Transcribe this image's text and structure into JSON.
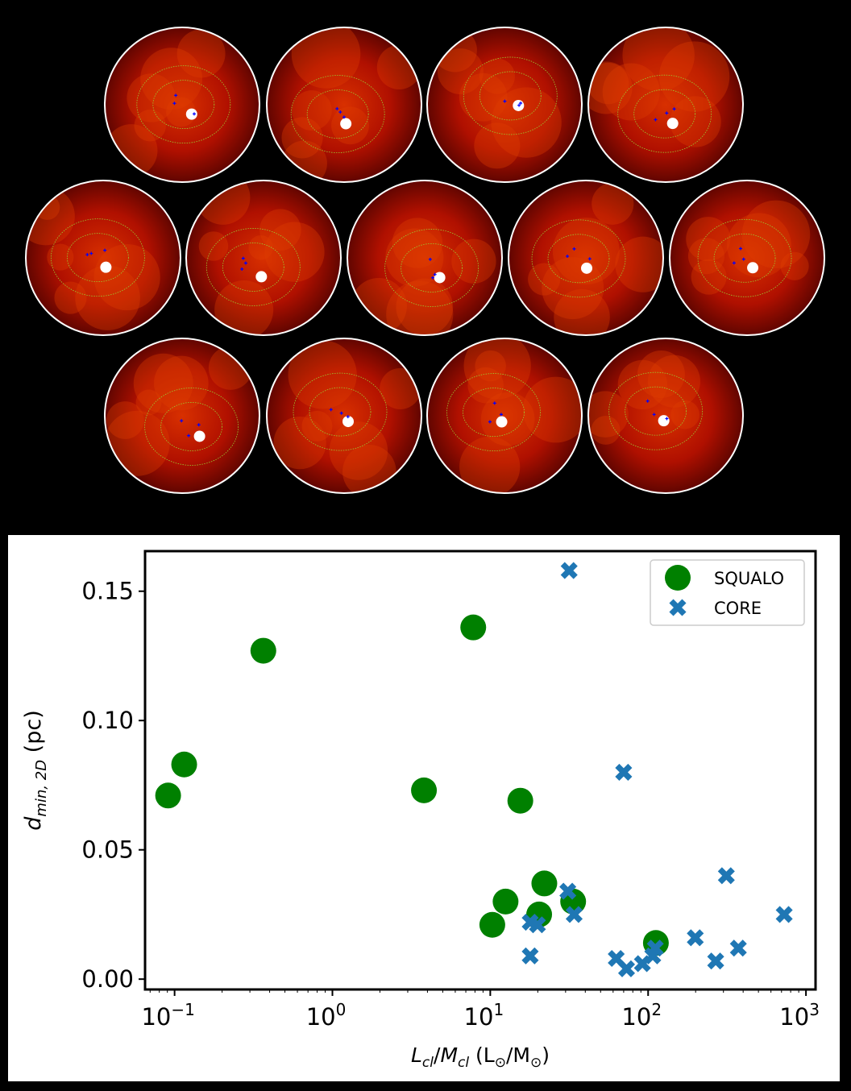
{
  "chart_data": {
    "type": "scatter",
    "title": "",
    "xlabel": "L_cl/M_cl (L_⊙/M_⊙)",
    "xlabel_parts": {
      "L": "L",
      "cl1": "cl",
      "slash": "/",
      "M": "M",
      "cl2": "cl",
      "units": " (L",
      "sun1": "⊙",
      "mid": "/M",
      "sun2": "⊙",
      "close": ")"
    },
    "ylabel": "d_min,2D (pc)",
    "ylabel_parts": {
      "d": "d",
      "sub": "min, 2D",
      "units": " (pc)"
    },
    "xscale": "log",
    "xlim": [
      0.065,
      1150
    ],
    "ylim": [
      -0.004,
      0.1655
    ],
    "xticks": [
      {
        "value": 0.1,
        "label": "10",
        "exp": "−1"
      },
      {
        "value": 1,
        "label": "10",
        "exp": "0"
      },
      {
        "value": 10,
        "label": "10",
        "exp": "1"
      },
      {
        "value": 100,
        "label": "10",
        "exp": "2"
      },
      {
        "value": 1000,
        "label": "10",
        "exp": "3"
      }
    ],
    "yticks": [
      {
        "value": 0.0,
        "label": "0.00"
      },
      {
        "value": 0.05,
        "label": "0.05"
      },
      {
        "value": 0.1,
        "label": "0.10"
      },
      {
        "value": 0.15,
        "label": "0.15"
      }
    ],
    "grid": false,
    "legend_position": "top-right",
    "series": [
      {
        "name": "SQUALO",
        "marker": "circle",
        "color": "#008000",
        "x": [
          0.091,
          0.115,
          0.365,
          3.8,
          7.8,
          15.5,
          10.3,
          12.5,
          22,
          20.4,
          33.5,
          112
        ],
        "y": [
          0.071,
          0.083,
          0.127,
          0.073,
          0.136,
          0.069,
          0.021,
          0.03,
          0.037,
          0.025,
          0.03,
          0.014
        ]
      },
      {
        "name": "CORE",
        "marker": "x",
        "color": "#1f77b4",
        "x": [
          31.6,
          70,
          313,
          31,
          34,
          17.9,
          19.9,
          17.9,
          62.8,
          73,
          92,
          107,
          111,
          199,
          268,
          373,
          728
        ],
        "y": [
          0.158,
          0.08,
          0.04,
          0.034,
          0.025,
          0.022,
          0.021,
          0.009,
          0.008,
          0.004,
          0.006,
          0.009,
          0.012,
          0.016,
          0.007,
          0.012,
          0.025
        ]
      }
    ]
  },
  "maps": {
    "count": 13,
    "colors": {
      "outline": "#ffffff",
      "contour": "#9acd32",
      "source": "#0000ff",
      "bg_dark": "#3a0000",
      "bg_mid": "#b01000",
      "bright": "#ffffff"
    }
  }
}
